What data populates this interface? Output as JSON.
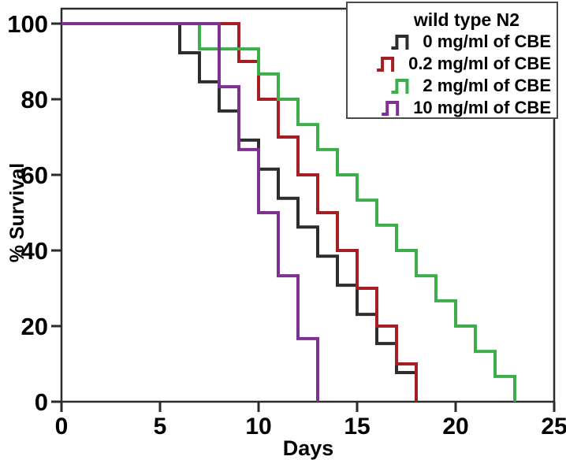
{
  "figure": {
    "background_color": "#ffffff",
    "axis_color": "#2b2b2b",
    "text_color": "#000000"
  },
  "legend": {
    "title": "wild type N2",
    "position": "top-right"
  },
  "chart_data": {
    "type": "line",
    "subtype": "kaplan-meier-step-survival",
    "title": "wild type N2",
    "xlabel": "Days",
    "ylabel": "% Survival",
    "xlim": [
      0,
      25
    ],
    "ylim": [
      0,
      100
    ],
    "xticks": [
      0,
      5,
      10,
      15,
      20,
      25
    ],
    "yticks": [
      0,
      20,
      40,
      60,
      80,
      100
    ],
    "grid": false,
    "legend_position": "top-right inside",
    "series": [
      {
        "name": "0 mg/ml of CBE",
        "color": "#2d2d2d",
        "points_day_percent": [
          [
            0,
            100
          ],
          [
            6,
            92.3
          ],
          [
            7,
            84.6
          ],
          [
            8,
            76.9
          ],
          [
            9,
            69.2
          ],
          [
            10,
            61.5
          ],
          [
            11,
            53.8
          ],
          [
            12,
            46.2
          ],
          [
            13,
            38.5
          ],
          [
            14,
            30.8
          ],
          [
            15,
            23.1
          ],
          [
            16,
            15.4
          ],
          [
            17,
            7.7
          ],
          [
            18,
            0
          ]
        ]
      },
      {
        "name": "0.2 mg/ml of CBE",
        "color": "#a51e23",
        "points_day_percent": [
          [
            0,
            100
          ],
          [
            9,
            90
          ],
          [
            10,
            80
          ],
          [
            11,
            70
          ],
          [
            12,
            60
          ],
          [
            13,
            50
          ],
          [
            14,
            40
          ],
          [
            15,
            30
          ],
          [
            16,
            20
          ],
          [
            17,
            10
          ],
          [
            18,
            0
          ]
        ]
      },
      {
        "name": "2 mg/ml of CBE",
        "color": "#3cae4c",
        "points_day_percent": [
          [
            0,
            100
          ],
          [
            7,
            93.3
          ],
          [
            10,
            86.7
          ],
          [
            11,
            80
          ],
          [
            12,
            73.3
          ],
          [
            13,
            66.7
          ],
          [
            14,
            60
          ],
          [
            15,
            53.3
          ],
          [
            16,
            46.7
          ],
          [
            17,
            40
          ],
          [
            18,
            33.3
          ],
          [
            19,
            26.7
          ],
          [
            20,
            20
          ],
          [
            21,
            13.3
          ],
          [
            22,
            6.7
          ],
          [
            23,
            0
          ]
        ]
      },
      {
        "name": "10 mg/ml of CBE",
        "color": "#7d3191",
        "points_day_percent": [
          [
            0,
            100
          ],
          [
            8,
            83.3
          ],
          [
            9,
            66.7
          ],
          [
            10,
            50
          ],
          [
            11,
            33.3
          ],
          [
            12,
            16.7
          ],
          [
            13,
            0
          ]
        ]
      }
    ]
  }
}
